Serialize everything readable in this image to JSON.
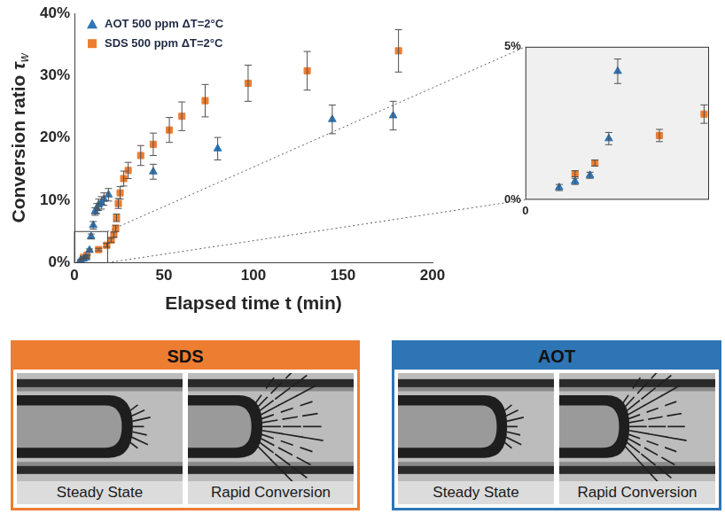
{
  "chart_data": [
    {
      "type": "scatter",
      "xlabel": "Elapsed time t (min)",
      "ylabel": "Conversion ratio τw",
      "xlim": [
        0,
        200
      ],
      "xticks": [
        0,
        50,
        100,
        150,
        200
      ],
      "ylim": [
        0,
        40
      ],
      "yticks": [
        {
          "value": 0,
          "label": "0%"
        },
        {
          "value": 10,
          "label": "10%"
        },
        {
          "value": 20,
          "label": "20%"
        },
        {
          "value": 30,
          "label": "30%"
        },
        {
          "value": 40,
          "label": "40%"
        }
      ],
      "grid": false,
      "legend": "upper left",
      "series": [
        {
          "name": "AOT 500 ppm ΔT=2°C",
          "color": "#2e75b6",
          "marker": "triangle",
          "x": [
            3.4,
            5,
            6.5,
            8.4,
            9.3,
            10.5,
            11.5,
            12.5,
            13.5,
            15,
            16.5,
            19,
            44,
            80,
            144,
            178
          ],
          "values": [
            0.4,
            0.6,
            0.8,
            2.0,
            4.2,
            6.0,
            8.2,
            8.7,
            9.3,
            9.6,
            10.2,
            10.9,
            14.6,
            18.3,
            23.0,
            23.6
          ],
          "errors": [
            0.1,
            0.1,
            0.1,
            0.2,
            0.4,
            0.6,
            0.6,
            0.8,
            0.9,
            1.0,
            1.0,
            1.0,
            1.2,
            1.8,
            2.3,
            2.3
          ]
        },
        {
          "name": "SDS 500 ppm ΔT=2°C",
          "color": "#ed7d31",
          "marker": "square",
          "x": [
            5,
            7,
            13.5,
            18,
            20.5,
            22,
            23,
            23.5,
            24.5,
            25.5,
            27.5,
            30,
            37,
            44,
            53,
            60,
            73,
            97,
            130,
            181
          ],
          "values": [
            0.85,
            1.2,
            2.1,
            2.8,
            3.6,
            4.5,
            5.5,
            7.2,
            9.5,
            11.2,
            13.5,
            14.8,
            17.2,
            19.0,
            21.3,
            23.5,
            26.0,
            28.8,
            30.8,
            34.0
          ],
          "errors": [
            0.1,
            0.1,
            0.2,
            0.3,
            0.3,
            0.4,
            0.5,
            0.6,
            0.8,
            1.0,
            1.2,
            1.3,
            1.6,
            1.8,
            2.0,
            2.3,
            2.6,
            2.9,
            3.1,
            3.4
          ]
        }
      ]
    },
    {
      "type": "scatter",
      "xlim": [
        0,
        18.5
      ],
      "xticks": [
        0
      ],
      "ylim": [
        0,
        5
      ],
      "yticks": [
        {
          "value": 0,
          "label": "0%"
        },
        {
          "value": 5,
          "label": "5%"
        }
      ],
      "grid": false,
      "series": [
        {
          "color": "#2e75b6",
          "marker": "triangle",
          "x": [
            3.4,
            5,
            6.5,
            8.4,
            9.3
          ],
          "values": [
            0.4,
            0.6,
            0.8,
            2.0,
            4.2
          ],
          "errors": [
            0.1,
            0.1,
            0.1,
            0.2,
            0.4
          ]
        },
        {
          "color": "#ed7d31",
          "marker": "square",
          "x": [
            5,
            7,
            13.5,
            18
          ],
          "values": [
            0.85,
            1.2,
            2.1,
            2.8
          ],
          "errors": [
            0.1,
            0.1,
            0.2,
            0.3
          ]
        }
      ]
    }
  ],
  "panels": [
    {
      "title": "SDS",
      "color": "#ed7d31",
      "images": [
        "Steady State",
        "Rapid Conversion"
      ]
    },
    {
      "title": "AOT",
      "color": "#2e75b6",
      "images": [
        "Steady State",
        "Rapid Conversion"
      ]
    }
  ]
}
